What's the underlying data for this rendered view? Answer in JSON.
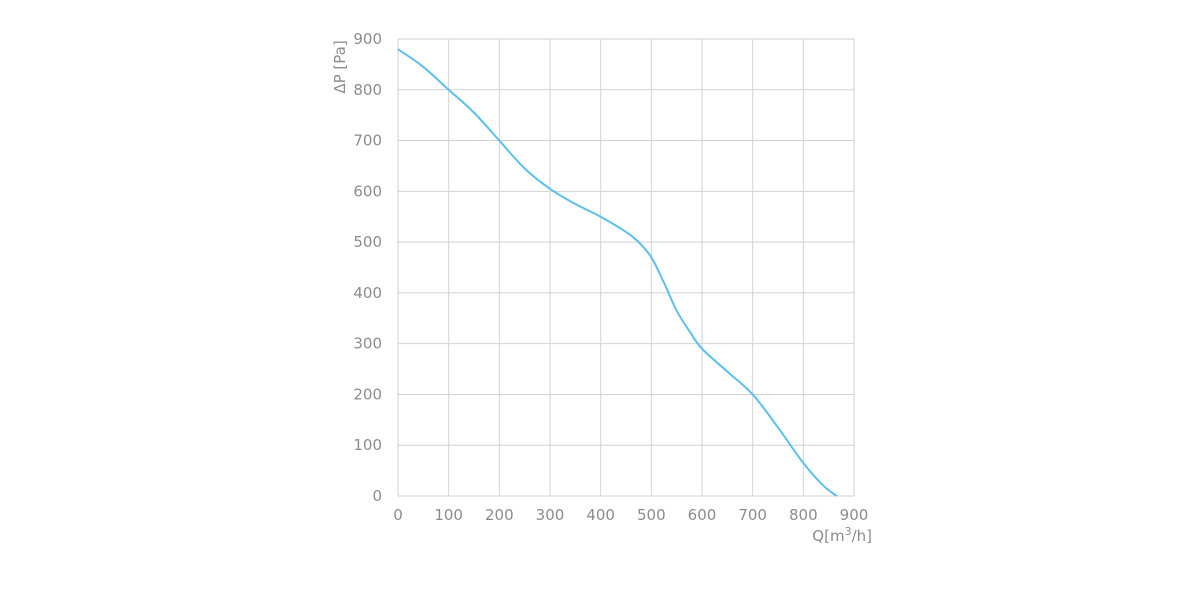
{
  "chart_data": {
    "type": "line",
    "xlabel_main": "Q[m",
    "xlabel_sup": "3",
    "xlabel_tail": "/h]",
    "ylabel": "ΔP [Pa]",
    "xlim": [
      0,
      900
    ],
    "ylim": [
      0,
      900
    ],
    "x_ticks": [
      "0",
      "100",
      "200",
      "300",
      "400",
      "500",
      "600",
      "700",
      "800",
      "900"
    ],
    "y_ticks": [
      "0",
      "100",
      "200",
      "300",
      "400",
      "500",
      "600",
      "700",
      "800",
      "900"
    ],
    "grid": true,
    "series": [
      {
        "color": "#5bc0eb",
        "x": [
          0,
          50,
          100,
          150,
          200,
          250,
          300,
          350,
          400,
          450,
          475,
          500,
          525,
          550,
          575,
          600,
          650,
          700,
          750,
          800,
          840,
          866
        ],
        "y": [
          880,
          845,
          800,
          755,
          700,
          645,
          605,
          575,
          550,
          520,
          500,
          470,
          420,
          365,
          325,
          290,
          245,
          200,
          135,
          65,
          20,
          0
        ]
      }
    ]
  }
}
